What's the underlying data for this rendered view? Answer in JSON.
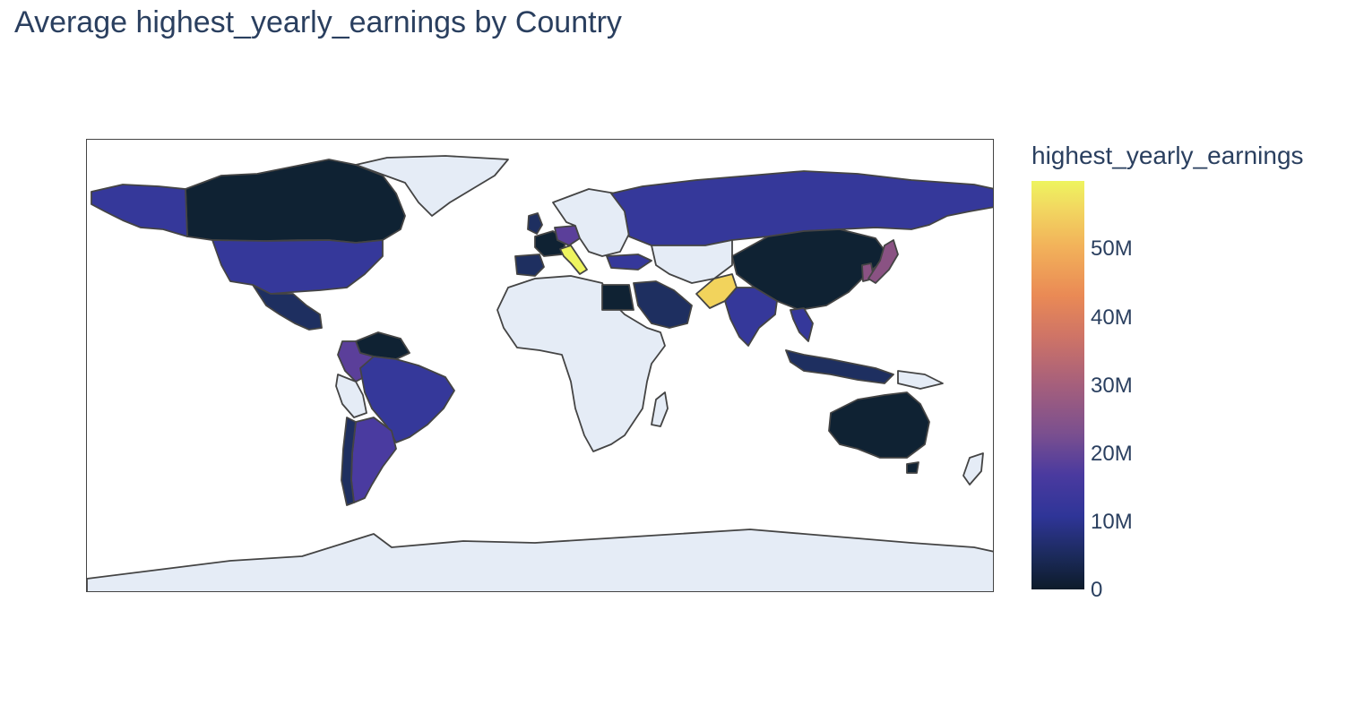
{
  "title": "Average highest_yearly_earnings by Country",
  "colorbar": {
    "title": "highest_yearly_earnings",
    "ticks": [
      "0",
      "10M",
      "20M",
      "30M",
      "40M",
      "50M"
    ],
    "range": [
      0,
      60000000
    ],
    "colors": [
      "#0d1b2a",
      "#2f3598",
      "#7a4f8f",
      "#cf7466",
      "#f2b25a",
      "#eef45f"
    ]
  },
  "map": {
    "projection": "natural-earth",
    "no_data_color": "#e5ecf6",
    "border_color": "#444444",
    "countries": [
      {
        "name": "Canada",
        "color": "#0f2233"
      },
      {
        "name": "United States",
        "color": "#35389a"
      },
      {
        "name": "Mexico",
        "color": "#1e2f60"
      },
      {
        "name": "Greenland",
        "color": "#e5ecf6"
      },
      {
        "name": "Colombia",
        "color": "#5b3f9a"
      },
      {
        "name": "Venezuela",
        "color": "#0f2233"
      },
      {
        "name": "Brazil",
        "color": "#35389a"
      },
      {
        "name": "Argentina",
        "color": "#4a3ba0"
      },
      {
        "name": "Chile",
        "color": "#1e2f60"
      },
      {
        "name": "Peru",
        "color": "#e5ecf6"
      },
      {
        "name": "Africa",
        "color": "#e5ecf6"
      },
      {
        "name": "Egypt",
        "color": "#0f2233"
      },
      {
        "name": "Saudi Arabia",
        "color": "#1e2f60"
      },
      {
        "name": "Pakistan",
        "color": "#f2d35c"
      },
      {
        "name": "India",
        "color": "#35389a"
      },
      {
        "name": "China",
        "color": "#0f2233"
      },
      {
        "name": "Russia",
        "color": "#35389a"
      },
      {
        "name": "Japan",
        "color": "#8a5283"
      },
      {
        "name": "South Korea",
        "color": "#8a5283"
      },
      {
        "name": "Thailand",
        "color": "#35389a"
      },
      {
        "name": "Indonesia",
        "color": "#1e2f60"
      },
      {
        "name": "Australia",
        "color": "#0f2233"
      },
      {
        "name": "Antarctica",
        "color": "#e5ecf6"
      },
      {
        "name": "Italy",
        "color": "#eef45f"
      },
      {
        "name": "Germany",
        "color": "#5b3f9a"
      },
      {
        "name": "Spain",
        "color": "#1e2f60"
      },
      {
        "name": "France",
        "color": "#0f2233"
      },
      {
        "name": "United Kingdom",
        "color": "#1e2f60"
      },
      {
        "name": "Turkey",
        "color": "#35389a"
      }
    ]
  }
}
